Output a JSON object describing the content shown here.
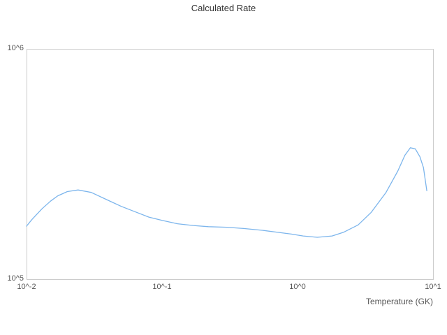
{
  "chart_data": {
    "type": "line",
    "title": "Calculated Rate",
    "xlabel": "Temperature (GK)",
    "ylabel": "",
    "x_scale": "log",
    "y_scale": "log",
    "xlim": [
      0.01,
      10
    ],
    "ylim": [
      100000,
      1000000
    ],
    "x_tick_labels": [
      "10^-2",
      "10^-1",
      "10^0",
      "10^1"
    ],
    "y_tick_labels": [
      "10^5",
      "10^6"
    ],
    "grid": false,
    "legend": "none",
    "line_color": "#7cb5ec",
    "border_color": "#cccccc",
    "series": [
      {
        "name": "Calculated Rate",
        "x": [
          0.01,
          0.011,
          0.013,
          0.015,
          0.017,
          0.02,
          0.024,
          0.03,
          0.04,
          0.05,
          0.065,
          0.08,
          0.1,
          0.13,
          0.17,
          0.22,
          0.3,
          0.4,
          0.55,
          0.7,
          0.9,
          1.1,
          1.4,
          1.8,
          2.2,
          2.8,
          3.5,
          4.5,
          5.5,
          6.2,
          6.8,
          7.4,
          8.0,
          8.5,
          9.0
        ],
        "values": [
          170000,
          182000,
          202000,
          218000,
          230000,
          240000,
          244000,
          238000,
          220000,
          207000,
          195000,
          186000,
          180000,
          174000,
          171000,
          169000,
          168000,
          166000,
          163000,
          160000,
          157000,
          154000,
          152000,
          154000,
          160000,
          172000,
          195000,
          238000,
          295000,
          345000,
          372000,
          368000,
          340000,
          305000,
          242000
        ]
      }
    ]
  }
}
